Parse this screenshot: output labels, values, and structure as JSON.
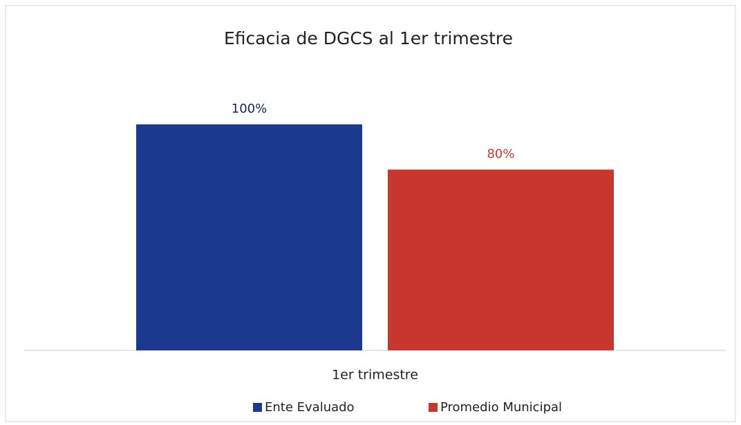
{
  "chart_data": {
    "type": "bar",
    "title": "Eficacia de DGCS al 1er trimestre",
    "categories": [
      "1er trimestre"
    ],
    "series": [
      {
        "name": "Ente Evaluado",
        "color": "#1c3990",
        "values": [
          100
        ],
        "value_labels": [
          "100%"
        ],
        "label_color": "#13235a"
      },
      {
        "name": "Promedio Municipal",
        "color": "#c8372d",
        "values": [
          80
        ],
        "value_labels": [
          "80%"
        ],
        "label_color": "#c8372d"
      }
    ],
    "ylim": [
      0,
      100
    ],
    "legend": "bottom"
  }
}
